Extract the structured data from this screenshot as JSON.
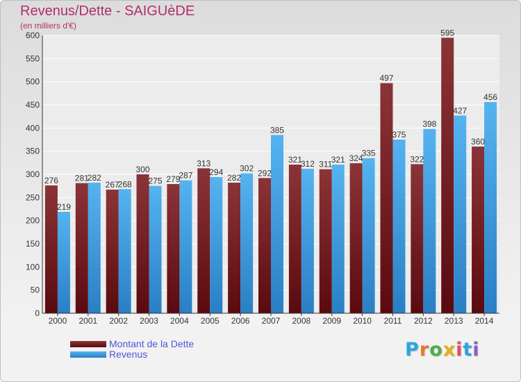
{
  "header": {
    "title": "Revenus/Dette - SAIGUèDE",
    "subtitle": "(en milliers d'€)"
  },
  "colors": {
    "title": "#b02f6a",
    "dette": "#7b1f24",
    "revenus": "#3a9be0",
    "legend_text": "#4c59d6"
  },
  "logo": {
    "text": "Proxiti",
    "letter_colors": [
      "#2aa6e0",
      "#e8782a",
      "#4cae4c",
      "#e2b21a",
      "#e04b6a",
      "#2aa6e0",
      "#8c5bc7"
    ]
  },
  "chart_data": {
    "type": "bar",
    "title": "Revenus/Dette - SAIGUèDE",
    "ylabel": "(en milliers d'€)",
    "xlabel": "",
    "categories": [
      "2000",
      "2001",
      "2002",
      "2003",
      "2004",
      "2005",
      "2006",
      "2007",
      "2008",
      "2009",
      "2010",
      "2011",
      "2012",
      "2013",
      "2014"
    ],
    "series": [
      {
        "name": "Montant de la Dette",
        "values": [
          276,
          281,
          267,
          300,
          279,
          313,
          282,
          292,
          321,
          311,
          324,
          497,
          322,
          595,
          360
        ]
      },
      {
        "name": "Revenus",
        "values": [
          219,
          282,
          268,
          275,
          287,
          294,
          302,
          385,
          312,
          321,
          335,
          375,
          398,
          427,
          456
        ]
      }
    ],
    "ylim": [
      0,
      600
    ],
    "yticks": [
      0,
      50,
      100,
      150,
      200,
      250,
      300,
      350,
      400,
      450,
      500,
      550,
      600
    ],
    "grid": true,
    "legend_position": "bottom-left"
  }
}
